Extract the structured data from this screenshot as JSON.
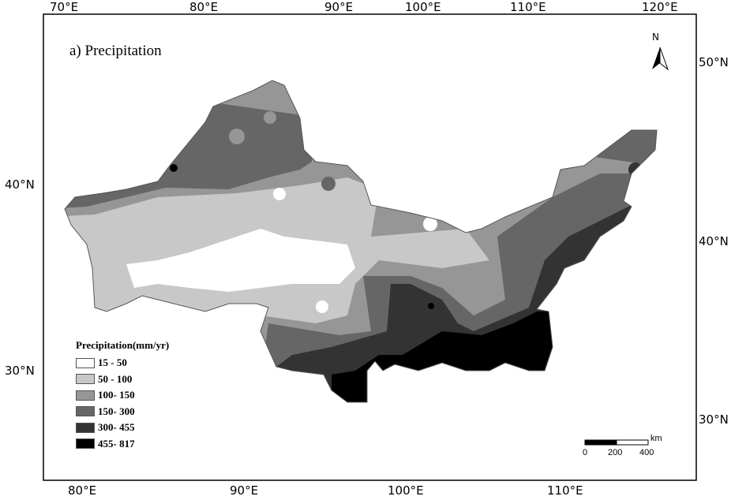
{
  "title": "a) Precipitation",
  "axes": {
    "top_lon": [
      "70°E",
      "80°E",
      "90°E",
      "100°E",
      "110°E",
      "120°E"
    ],
    "bottom_lon": [
      "80°E",
      "90°E",
      "100°E",
      "110°E"
    ],
    "left_lat": [
      "40°N",
      "30°N"
    ],
    "right_lat": [
      "50°N",
      "40°N",
      "30°N"
    ]
  },
  "north_arrow": {
    "label": "N",
    "icon": "north-arrow-icon"
  },
  "legend": {
    "title": "Precipitation(mm/yr)",
    "items": [
      {
        "label": "15 - 50",
        "color": "#ffffff"
      },
      {
        "label": "50 - 100",
        "color": "#c8c8c8"
      },
      {
        "label": "100- 150",
        "color": "#969696"
      },
      {
        "label": "150- 300",
        "color": "#666666"
      },
      {
        "label": "300- 455",
        "color": "#333333"
      },
      {
        "label": "455- 817",
        "color": "#000000"
      }
    ]
  },
  "scale_bar": {
    "unit": "km",
    "labels": [
      "0",
      "200",
      "400"
    ]
  }
}
